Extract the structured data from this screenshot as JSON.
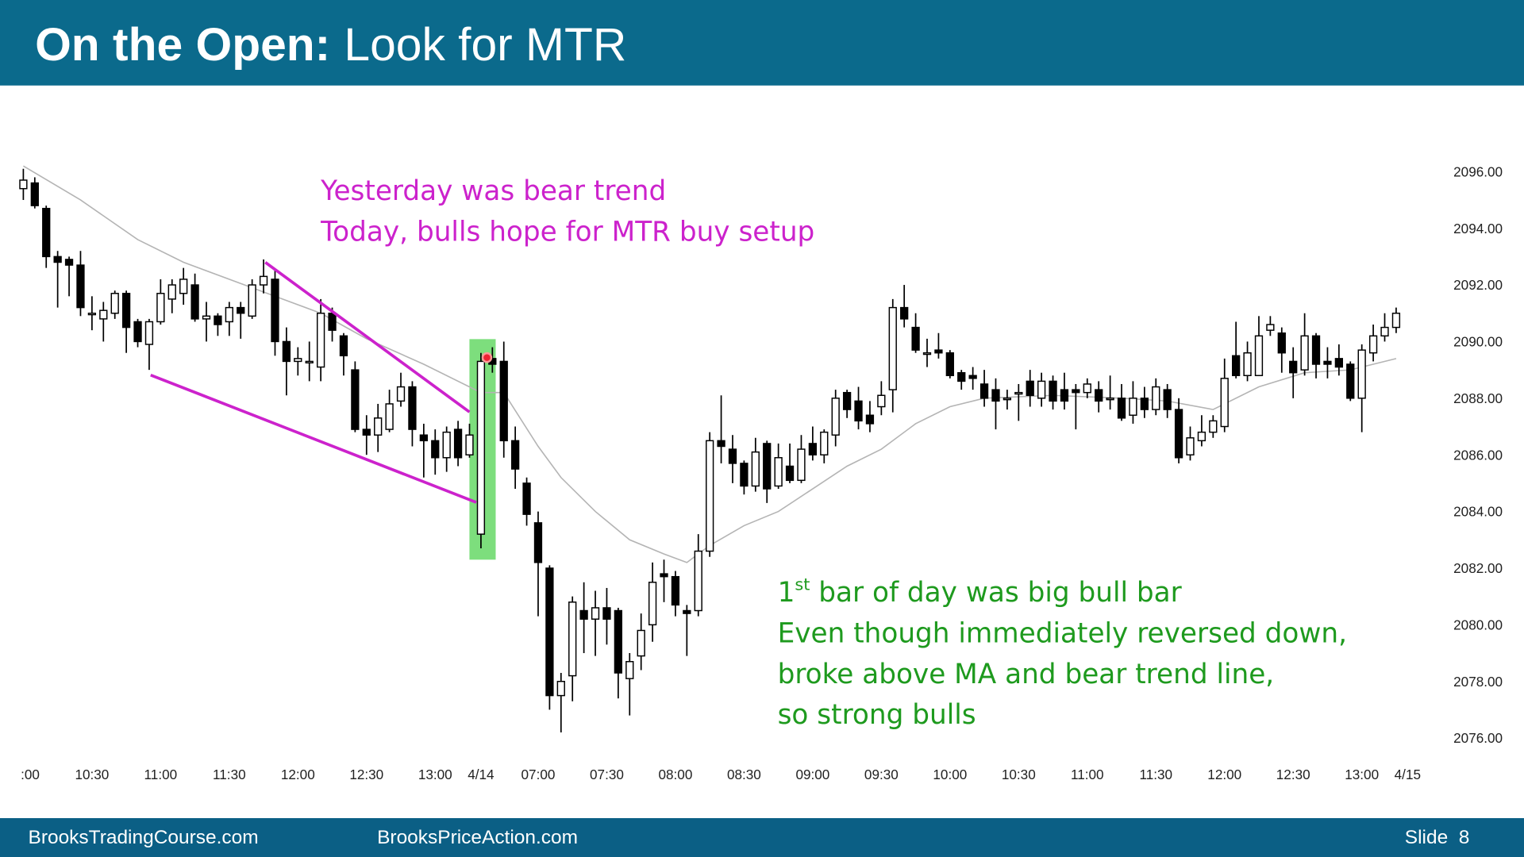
{
  "header": {
    "title_bold": "On the Open:",
    "title_rest": "Look for MTR"
  },
  "footer": {
    "left": "BrooksTradingCourse.com",
    "center": "BrooksPriceAction.com",
    "slide": "Slide  8"
  },
  "chart_data": {
    "type": "candlestick",
    "annotations_top": [
      "Yesterday was bear trend",
      "Today, bulls hope for MTR buy setup"
    ],
    "annotation_bottom_first": [
      "1",
      "st",
      " bar of day was big bull bar"
    ],
    "annotations_bottom": [
      "Even though immediately reversed down,",
      "broke above MA and bear trend line,",
      "so strong bulls"
    ],
    "annotation_color_top": "#cc22cc",
    "annotation_color_bottom": "#1e9a1e",
    "ylim": [
      2075.3,
      2097.6
    ],
    "yticks": [
      {
        "value": 2096,
        "label": "2096.00"
      },
      {
        "value": 2094,
        "label": "2094.00"
      },
      {
        "value": 2092,
        "label": "2092.00"
      },
      {
        "value": 2090,
        "label": "2090.00"
      },
      {
        "value": 2088,
        "label": "2088.00"
      },
      {
        "value": 2086,
        "label": "2086.00"
      },
      {
        "value": 2084,
        "label": "2084.00"
      },
      {
        "value": 2082,
        "label": "2082.00"
      },
      {
        "value": 2080,
        "label": "2080.00"
      },
      {
        "value": 2078,
        "label": "2078.00"
      },
      {
        "value": 2076,
        "label": "2076.00"
      }
    ],
    "xlim": [
      -2.04,
      122.85
    ],
    "xticks": [
      {
        "value": 0.6,
        "label": ":00"
      },
      {
        "value": 6,
        "label": "10:30"
      },
      {
        "value": 12,
        "label": "11:00"
      },
      {
        "value": 18,
        "label": "11:30"
      },
      {
        "value": 24,
        "label": "12:00"
      },
      {
        "value": 30,
        "label": "12:30"
      },
      {
        "value": 36,
        "label": "13:00"
      },
      {
        "value": 40,
        "label": "4/14"
      },
      {
        "value": 45,
        "label": "07:00"
      },
      {
        "value": 51,
        "label": "07:30"
      },
      {
        "value": 57,
        "label": "08:00"
      },
      {
        "value": 63,
        "label": "08:30"
      },
      {
        "value": 69,
        "label": "09:00"
      },
      {
        "value": 75,
        "label": "09:30"
      },
      {
        "value": 81,
        "label": "10:00"
      },
      {
        "value": 87,
        "label": "10:30"
      },
      {
        "value": 93,
        "label": "11:00"
      },
      {
        "value": 99,
        "label": "11:30"
      },
      {
        "value": 105,
        "label": "12:00"
      },
      {
        "value": 111,
        "label": "12:30"
      },
      {
        "value": 117,
        "label": "13:00"
      },
      {
        "value": 121,
        "label": "4/15"
      }
    ],
    "open": [
      2095.4,
      2095.6,
      2094.7,
      2093.0,
      2092.9,
      2092.7,
      2091.0,
      2090.8,
      2091.0,
      2091.7,
      2090.7,
      2089.9,
      2090.7,
      2091.5,
      2091.7,
      2092.0,
      2090.8,
      2090.9,
      2090.7,
      2091.2,
      2090.9,
      2092.0,
      2092.2,
      2090.0,
      2089.3,
      2089.3,
      2089.1,
      2091.0,
      2090.2,
      2089.0,
      2086.9,
      2086.7,
      2086.9,
      2087.9,
      2088.4,
      2086.7,
      2086.5,
      2085.9,
      2086.9,
      2086.0,
      2083.2,
      2089.4,
      2089.3,
      2086.5,
      2085.0,
      2083.6,
      2082.0,
      2077.5,
      2078.2,
      2080.5,
      2080.2,
      2080.6,
      2080.5,
      2078.1,
      2078.9,
      2080.0,
      2081.8,
      2081.7,
      2080.5,
      2080.5,
      2082.6,
      2086.5,
      2086.2,
      2085.7,
      2084.9,
      2086.4,
      2084.9,
      2085.6,
      2085.1,
      2086.4,
      2086.0,
      2086.7,
      2088.2,
      2087.9,
      2087.4,
      2087.7,
      2088.3,
      2091.2,
      2090.5,
      2089.6,
      2089.7,
      2089.6,
      2088.9,
      2088.8,
      2088.5,
      2088.3,
      2088.0,
      2088.2,
      2088.6,
      2088.0,
      2088.6,
      2088.3,
      2088.3,
      2088.2,
      2088.3,
      2088.0,
      2088.0,
      2087.4,
      2088.0,
      2087.6,
      2088.3,
      2087.6,
      2086.0,
      2086.5,
      2086.8,
      2087.0,
      2089.5,
      2088.8,
      2088.8,
      2090.4,
      2090.3,
      2089.3,
      2089.0,
      2090.2,
      2089.3,
      2089.4,
      2089.2,
      2088.0,
      2089.6,
      2090.2,
      2090.5
    ],
    "high": [
      2096.1,
      2095.8,
      2094.8,
      2093.2,
      2093.0,
      2093.2,
      2091.6,
      2091.4,
      2091.8,
      2091.8,
      2090.8,
      2090.8,
      2092.2,
      2092.2,
      2092.6,
      2092.4,
      2091.4,
      2091.0,
      2091.4,
      2091.4,
      2092.2,
      2092.9,
      2092.5,
      2090.5,
      2089.8,
      2090.0,
      2091.5,
      2091.2,
      2090.3,
      2089.3,
      2087.4,
      2087.8,
      2088.3,
      2088.9,
      2088.6,
      2087.1,
      2086.9,
      2087.0,
      2087.2,
      2087.1,
      2089.6,
      2089.8,
      2090.0,
      2087.0,
      2085.2,
      2084.0,
      2082.1,
      2078.3,
      2081.0,
      2081.5,
      2081.2,
      2081.3,
      2080.6,
      2079.0,
      2080.4,
      2082.2,
      2082.3,
      2081.9,
      2080.7,
      2083.2,
      2086.8,
      2088.1,
      2086.7,
      2085.8,
      2086.6,
      2086.5,
      2086.4,
      2086.4,
      2086.7,
      2087.0,
      2086.9,
      2088.3,
      2088.3,
      2088.4,
      2087.9,
      2088.6,
      2091.5,
      2092.0,
      2091.0,
      2090.1,
      2090.3,
      2089.7,
      2089.0,
      2089.1,
      2089.0,
      2088.7,
      2088.3,
      2088.5,
      2089.0,
      2088.9,
      2088.8,
      2088.9,
      2088.5,
      2088.7,
      2088.6,
      2088.8,
      2088.5,
      2088.6,
      2088.4,
      2088.7,
      2088.5,
      2088.0,
      2087.0,
      2087.4,
      2087.4,
      2089.4,
      2090.7,
      2090.0,
      2090.9,
      2090.9,
      2090.5,
      2089.8,
      2091.0,
      2090.3,
      2089.8,
      2089.9,
      2089.3,
      2089.9,
      2090.6,
      2091.0,
      2091.2
    ],
    "low": [
      2095.0,
      2094.7,
      2092.6,
      2091.2,
      2091.6,
      2090.9,
      2090.4,
      2090.0,
      2090.8,
      2089.6,
      2089.8,
      2089.0,
      2090.6,
      2091.0,
      2091.3,
      2090.7,
      2090.0,
      2090.2,
      2090.2,
      2090.1,
      2090.8,
      2091.7,
      2089.5,
      2088.1,
      2088.8,
      2088.6,
      2088.6,
      2090.0,
      2088.8,
      2086.8,
      2086.0,
      2086.1,
      2086.8,
      2087.7,
      2086.3,
      2085.2,
      2085.3,
      2085.4,
      2085.6,
      2085.9,
      2082.7,
      2088.9,
      2085.9,
      2084.8,
      2083.5,
      2080.3,
      2077.0,
      2076.2,
      2077.3,
      2079.0,
      2078.9,
      2079.3,
      2077.4,
      2076.8,
      2078.4,
      2079.4,
      2080.8,
      2080.3,
      2078.9,
      2080.3,
      2082.4,
      2085.7,
      2085.0,
      2084.6,
      2084.7,
      2084.3,
      2084.8,
      2085.0,
      2085.0,
      2085.8,
      2085.7,
      2086.3,
      2087.3,
      2086.9,
      2086.8,
      2087.4,
      2087.5,
      2090.5,
      2089.6,
      2089.1,
      2089.4,
      2088.7,
      2088.3,
      2088.3,
      2087.7,
      2086.9,
      2087.6,
      2087.2,
      2087.7,
      2087.7,
      2087.6,
      2087.6,
      2086.9,
      2088.0,
      2087.5,
      2087.6,
      2087.2,
      2087.1,
      2087.3,
      2087.4,
      2087.3,
      2085.7,
      2085.8,
      2086.3,
      2086.6,
      2086.8,
      2088.7,
      2088.6,
      2088.8,
      2090.2,
      2088.9,
      2088.0,
      2088.8,
      2088.7,
      2088.7,
      2088.8,
      2087.9,
      2086.8,
      2089.3,
      2090.0,
      2090.3
    ],
    "close": [
      2095.7,
      2094.8,
      2093.0,
      2092.8,
      2092.7,
      2091.2,
      2091.0,
      2091.1,
      2091.7,
      2090.5,
      2090.0,
      2090.7,
      2091.7,
      2092.0,
      2092.2,
      2090.8,
      2090.9,
      2090.6,
      2091.2,
      2091.0,
      2092.0,
      2092.3,
      2090.0,
      2089.3,
      2089.4,
      2089.3,
      2091.0,
      2090.4,
      2089.5,
      2086.9,
      2086.7,
      2087.3,
      2087.8,
      2088.4,
      2086.9,
      2086.5,
      2085.9,
      2086.8,
      2085.9,
      2086.7,
      2089.3,
      2089.2,
      2086.5,
      2085.5,
      2083.9,
      2082.2,
      2077.5,
      2078.0,
      2080.8,
      2080.2,
      2080.6,
      2080.2,
      2078.3,
      2078.7,
      2079.8,
      2081.5,
      2081.7,
      2080.7,
      2080.4,
      2082.6,
      2086.5,
      2086.3,
      2085.7,
      2084.9,
      2086.1,
      2084.8,
      2085.9,
      2085.1,
      2086.2,
      2086.0,
      2086.8,
      2088.0,
      2087.6,
      2087.2,
      2087.1,
      2088.1,
      2091.2,
      2090.8,
      2089.7,
      2089.6,
      2089.6,
      2088.8,
      2088.6,
      2088.7,
      2088.0,
      2087.9,
      2088.0,
      2088.2,
      2088.1,
      2088.6,
      2087.9,
      2087.9,
      2088.2,
      2088.5,
      2087.9,
      2088.0,
      2087.3,
      2088.0,
      2087.6,
      2088.4,
      2087.6,
      2085.9,
      2086.6,
      2086.8,
      2087.2,
      2088.7,
      2088.8,
      2089.6,
      2090.2,
      2090.6,
      2089.6,
      2088.9,
      2090.2,
      2089.2,
      2089.2,
      2089.1,
      2088.0,
      2089.7,
      2090.2,
      2090.5,
      2091.0
    ],
    "up_color": "#ffffff",
    "down_color": "#000000",
    "ma": {
      "color": "#b4b4b4",
      "x": [
        0,
        5,
        10,
        14,
        20,
        26,
        30,
        35,
        40,
        42,
        45,
        47,
        50,
        53,
        56,
        58,
        60,
        63,
        66,
        69,
        72,
        75,
        78,
        81,
        84,
        90,
        96,
        100,
        104,
        108,
        112,
        116,
        120
      ],
      "values": [
        2096.2,
        2095.0,
        2093.6,
        2092.8,
        2091.9,
        2091.0,
        2090.1,
        2089.2,
        2088.2,
        2088.2,
        2086.3,
        2085.2,
        2084.0,
        2083.0,
        2082.5,
        2082.2,
        2082.8,
        2083.5,
        2084.0,
        2084.8,
        2085.6,
        2086.2,
        2087.1,
        2087.7,
        2088.0,
        2088.1,
        2088.0,
        2087.9,
        2087.6,
        2088.4,
        2088.9,
        2089.0,
        2089.4
      ]
    }
  }
}
